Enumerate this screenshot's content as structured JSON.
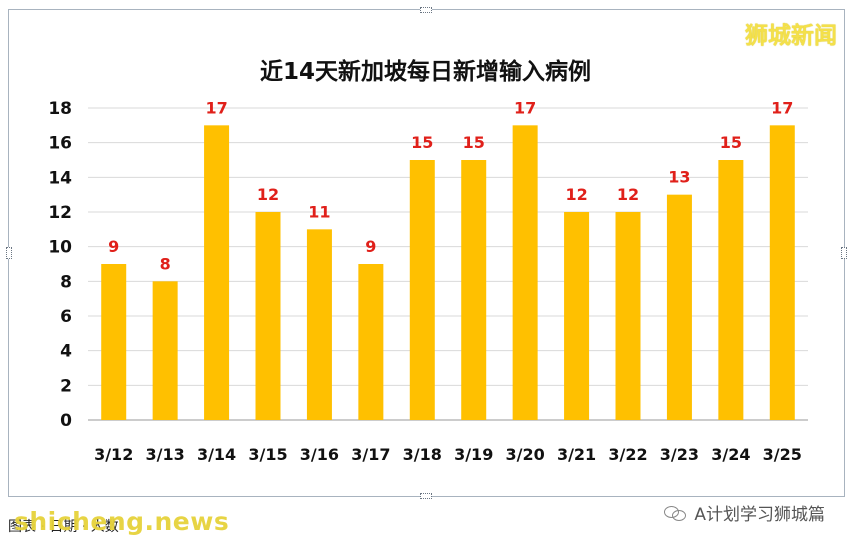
{
  "watermark": "狮城新闻",
  "footer": {
    "left_text": "图表 · 日期 · 人数",
    "site": "shicheng.news",
    "account": "A计划学习狮城篇"
  },
  "colors": {
    "bar": "#FFC000",
    "label": "#E0201A",
    "grid": "#D9D9D9"
  },
  "chart_data": {
    "type": "bar",
    "title": "近14天新加坡每日新增输入病例",
    "xlabel": "",
    "ylabel": "",
    "categories": [
      "3/12",
      "3/13",
      "3/14",
      "3/15",
      "3/16",
      "3/17",
      "3/18",
      "3/19",
      "3/20",
      "3/21",
      "3/22",
      "3/23",
      "3/24",
      "3/25"
    ],
    "values": [
      9,
      8,
      17,
      12,
      11,
      9,
      15,
      15,
      17,
      12,
      12,
      13,
      15,
      17
    ],
    "ylim": [
      0,
      18
    ],
    "yticks": [
      0,
      2,
      4,
      6,
      8,
      10,
      12,
      14,
      16,
      18
    ],
    "grid": true,
    "data_labels": true
  }
}
